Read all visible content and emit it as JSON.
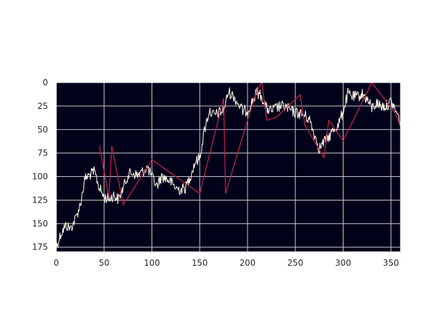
{
  "chart_data": {
    "type": "line",
    "title": "",
    "xlabel": "",
    "ylabel": "",
    "xlim": [
      0,
      360
    ],
    "ylim": [
      180,
      0
    ],
    "y_inverted": true,
    "grid": true,
    "xticks": [
      0,
      50,
      100,
      150,
      200,
      250,
      300,
      350
    ],
    "yticks": [
      0,
      25,
      50,
      75,
      100,
      125,
      150,
      175
    ],
    "colors": {
      "background": "#01021a",
      "grid": "#c9c9d6",
      "trace": "#f5efe0",
      "overlay": "#c2204a"
    },
    "series": [
      {
        "style": "noisy-trace",
        "x": [
          0,
          5,
          10,
          15,
          20,
          25,
          30,
          35,
          40,
          45,
          50,
          55,
          60,
          65,
          70,
          75,
          80,
          85,
          90,
          95,
          100,
          105,
          110,
          115,
          120,
          125,
          130,
          135,
          140,
          145,
          150,
          155,
          160,
          165,
          170,
          175,
          180,
          185,
          190,
          195,
          200,
          205,
          210,
          215,
          220,
          225,
          230,
          235,
          240,
          245,
          250,
          255,
          260,
          265,
          270,
          275,
          280,
          285,
          290,
          295,
          300,
          305,
          310,
          315,
          320,
          325,
          330,
          335,
          340,
          345,
          350,
          355,
          360
        ],
        "y": [
          175,
          160,
          152,
          155,
          145,
          130,
          102,
          98,
          95,
          112,
          122,
          124,
          120,
          124,
          112,
          98,
          96,
          99,
          95,
          90,
          100,
          110,
          100,
          102,
          106,
          112,
          114,
          112,
          100,
          85,
          80,
          50,
          30,
          35,
          32,
          30,
          10,
          14,
          22,
          30,
          30,
          20,
          10,
          15,
          28,
          30,
          27,
          25,
          26,
          30,
          32,
          33,
          35,
          40,
          55,
          70,
          63,
          58,
          50,
          45,
          30,
          12,
          15,
          15,
          12,
          18,
          27,
          22,
          25,
          25,
          20,
          30,
          42
        ]
      },
      {
        "style": "overlay-line",
        "x": [
          45,
          55,
          58,
          70,
          100,
          150,
          175,
          177,
          200,
          210,
          215,
          220,
          230,
          255,
          260,
          280,
          285,
          300,
          330,
          355,
          360
        ],
        "y": [
          67,
          122,
          68,
          130,
          82,
          118,
          17,
          118,
          40,
          8,
          0,
          40,
          37,
          13,
          45,
          80,
          40,
          62,
          0,
          33,
          47
        ]
      }
    ]
  }
}
